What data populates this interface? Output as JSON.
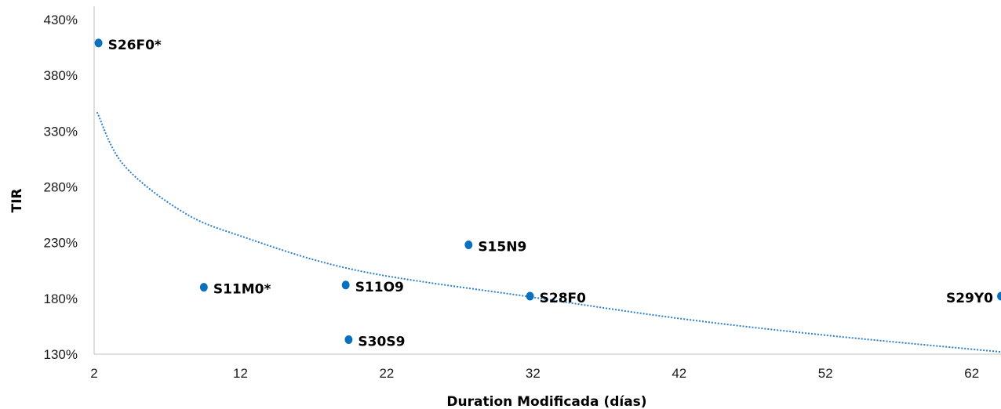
{
  "chart_data": {
    "type": "scatter",
    "title": "",
    "xlabel": "Duration Modificada (días)",
    "ylabel": "TIR",
    "xlim": [
      2,
      64
    ],
    "ylim": [
      130,
      430
    ],
    "x_ticks": [
      "2",
      "12",
      "22",
      "32",
      "42",
      "52",
      "62"
    ],
    "y_ticks": [
      "130%",
      "180%",
      "230%",
      "280%",
      "330%",
      "380%",
      "430%"
    ],
    "grid": false,
    "legend": "none",
    "marker_color": "#0a6fbd",
    "trend_color": "#2b7fcc",
    "points": [
      {
        "label": "S26F0*",
        "x": 2.3,
        "y": 409
      },
      {
        "label": "S11M0*",
        "x": 9.5,
        "y": 190
      },
      {
        "label": "S11O9",
        "x": 19.2,
        "y": 192
      },
      {
        "label": "S30S9",
        "x": 19.4,
        "y": 143
      },
      {
        "label": "S15N9",
        "x": 27.6,
        "y": 228
      },
      {
        "label": "S28F0",
        "x": 31.8,
        "y": 182
      },
      {
        "label": "S29Y0",
        "x": 64,
        "y": 182
      }
    ],
    "trendline": {
      "type": "logarithmic",
      "points": [
        {
          "x": 2.2,
          "y": 347
        },
        {
          "x": 4,
          "y": 300
        },
        {
          "x": 8,
          "y": 258
        },
        {
          "x": 12,
          "y": 236
        },
        {
          "x": 20,
          "y": 205
        },
        {
          "x": 32,
          "y": 181
        },
        {
          "x": 42,
          "y": 162
        },
        {
          "x": 52,
          "y": 147
        },
        {
          "x": 64,
          "y": 132
        }
      ]
    }
  }
}
